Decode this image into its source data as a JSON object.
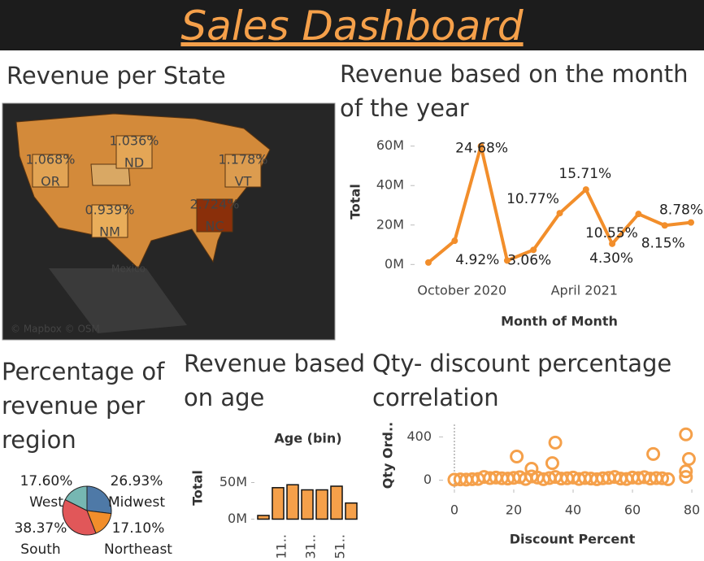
{
  "title": "Sales Dashboard",
  "chart_data": [
    {
      "type": "map",
      "title": "Revenue per State",
      "categories": [
        "OR",
        "ND",
        "VT",
        "NM",
        "NC"
      ],
      "values": [
        1.068,
        1.036,
        1.178,
        0.939,
        2.724
      ],
      "value_labels": [
        "1.068%",
        "1.036%",
        "1.178%",
        "0.939%",
        "2.724%"
      ],
      "color_scale": [
        "#e9ad5a",
        "#8a2f0a"
      ],
      "place_labels": [
        "Mexico"
      ],
      "attribution": "© Mapbox © OSM"
    },
    {
      "type": "line",
      "title": "Revenue based on the month of the year",
      "xlabel": "Month of Month",
      "ylabel": "Total",
      "categories": [
        null,
        "October 2020",
        null,
        null,
        null,
        null,
        "April 2021",
        null,
        null,
        null,
        null
      ],
      "values": [
        1,
        12,
        60,
        2,
        7.4,
        26,
        38,
        10.5,
        25.6,
        19.8,
        21.3
      ],
      "point_labels": [
        null,
        "4.92%",
        "24.68%",
        null,
        "3.06%",
        "10.77%",
        "15.71%",
        "4.30%",
        "10.55%",
        "8.15%",
        "8.78%"
      ],
      "color": "#f28e2b",
      "ylim": [
        -4,
        64
      ],
      "yticks": [
        {
          "value": 0,
          "label": "0M"
        },
        {
          "value": 20,
          "label": "20M"
        },
        {
          "value": 40,
          "label": "40M"
        },
        {
          "value": 60,
          "label": "60M"
        }
      ]
    },
    {
      "type": "pie",
      "title": "Percentage of revenue per region",
      "categories": [
        "Midwest",
        "Northeast",
        "South",
        "West"
      ],
      "values": [
        26.93,
        17.1,
        38.37,
        17.6
      ],
      "value_labels": [
        "26.93%",
        "17.10%",
        "38.37%",
        "17.60%"
      ],
      "colors": [
        "#4e79a7",
        "#f28e2b",
        "#e15759",
        "#76b7b2"
      ]
    },
    {
      "type": "bar",
      "title": "Revenue based on age",
      "subtitle": "Age (bin)",
      "ylabel": "Total",
      "categories": [
        null,
        "11..",
        null,
        "31..",
        null,
        "51..",
        null
      ],
      "values": [
        5,
        43,
        47,
        40,
        40,
        45,
        22
      ],
      "color": "#f5a04a",
      "ylim": [
        -5,
        100
      ],
      "yticks": [
        {
          "value": 0,
          "label": "0M"
        },
        {
          "value": 50,
          "label": "50M"
        }
      ]
    },
    {
      "type": "scatter",
      "title": "Qty- discount percentage correlation",
      "xlabel": "Discount Percent",
      "ylabel": "Qty Ord..",
      "color": "#f5a04a",
      "x": [
        0,
        2,
        4,
        6,
        8,
        10,
        12,
        14,
        16,
        18,
        20,
        22,
        24,
        26,
        28,
        30,
        32,
        34,
        36,
        38,
        40,
        42,
        44,
        46,
        48,
        50,
        52,
        54,
        56,
        58,
        60,
        62,
        64,
        66,
        68,
        70,
        72,
        21,
        34,
        26,
        33,
        67,
        78,
        79,
        78,
        78
      ],
      "y": [
        5,
        8,
        6,
        10,
        12,
        30,
        20,
        25,
        18,
        15,
        22,
        28,
        12,
        35,
        25,
        10,
        20,
        30,
        15,
        18,
        25,
        12,
        20,
        15,
        10,
        18,
        22,
        30,
        15,
        12,
        25,
        20,
        28,
        15,
        20,
        18,
        10,
        219,
        347,
        106,
        158,
        242,
        423,
        196,
        83,
        30
      ],
      "xlim": [
        -3,
        83
      ],
      "ylim": [
        -70,
        530
      ],
      "xticks": [
        0,
        20,
        40,
        60,
        80
      ],
      "yticks": [
        0,
        400
      ]
    }
  ]
}
